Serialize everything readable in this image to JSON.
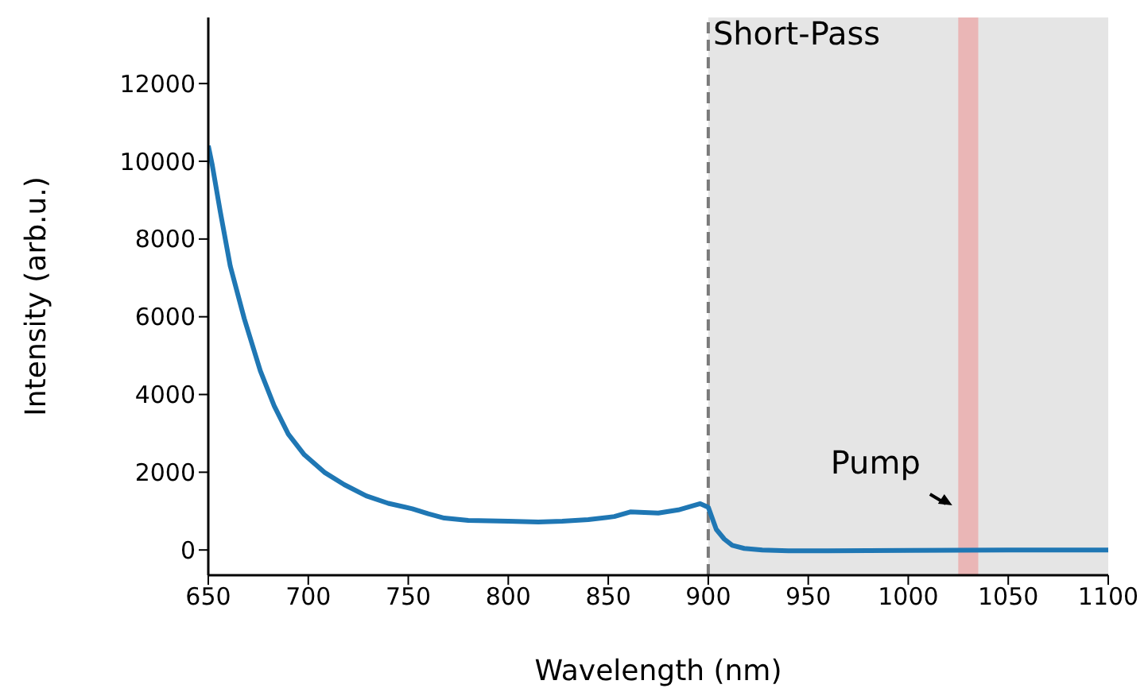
{
  "chart_data": {
    "type": "line",
    "xlabel": "Wavelength (nm)",
    "ylabel": "Intensity (arb.u.)",
    "xlim": [
      650,
      1100
    ],
    "xticks": [
      650,
      700,
      750,
      800,
      850,
      900,
      950,
      1000,
      1050,
      1100
    ],
    "ylim": [
      -650,
      13700
    ],
    "yticks": [
      0,
      2000,
      4000,
      6000,
      8000,
      10000,
      12000
    ],
    "grid": false,
    "marker": "none",
    "line_style": "solid",
    "series": [
      {
        "color": "#1f77b4",
        "x": [
          650,
          652,
          656,
          661,
          668,
          676,
          683,
          690,
          698,
          708,
          718,
          729,
          740,
          752,
          760,
          768,
          780,
          800,
          815,
          827,
          840,
          853,
          861,
          875,
          885,
          896,
          900,
          904,
          908,
          912,
          918,
          927,
          940,
          960,
          1000,
          1050,
          1100
        ],
        "values": [
          10400,
          9900,
          8700,
          7300,
          5950,
          4610,
          3700,
          2980,
          2450,
          2000,
          1680,
          1390,
          1200,
          1060,
          930,
          820,
          760,
          740,
          720,
          740,
          780,
          860,
          980,
          950,
          1030,
          1190,
          1100,
          530,
          280,
          120,
          40,
          0,
          -20,
          -20,
          -10,
          0,
          0
        ]
      }
    ],
    "ref_lines": [
      {
        "axis": "x",
        "value": 900,
        "color": "#7a7a7a",
        "line_style": "dashed"
      }
    ],
    "bands": [
      {
        "axis": "x",
        "from": 900,
        "to": 1100,
        "label": "Short-Pass",
        "color": "#e5e5e5"
      },
      {
        "axis": "x",
        "from": 1025,
        "to": 1035,
        "color": "#eab6b6"
      }
    ],
    "annotations": [
      {
        "text": "Pump",
        "x": 1022,
        "y": 1150
      }
    ]
  }
}
